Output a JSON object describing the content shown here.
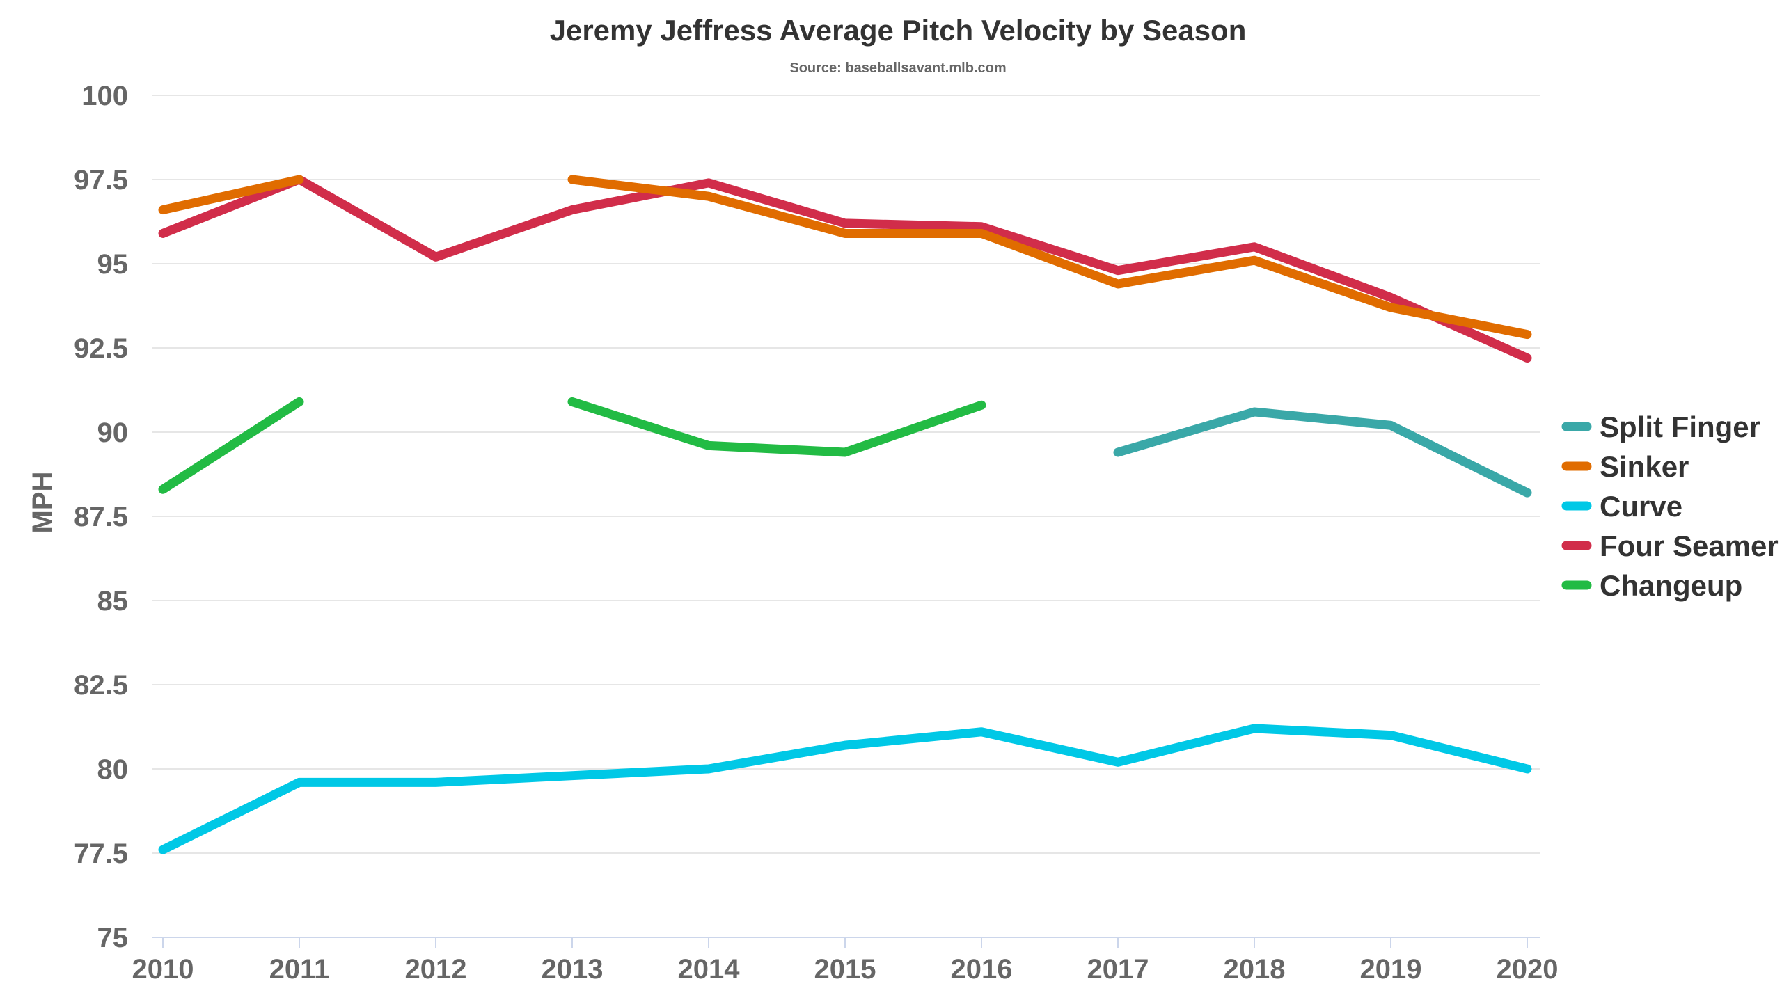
{
  "chart_data": {
    "type": "line",
    "title": "Jeremy Jeffress Average Pitch Velocity by Season",
    "subtitle": "Source: baseballsavant.mlb.com",
    "xlabel": "",
    "ylabel": "MPH",
    "categories": [
      "2010",
      "2011",
      "2012",
      "2013",
      "2014",
      "2015",
      "2016",
      "2017",
      "2018",
      "2019",
      "2020"
    ],
    "y_ticks": [
      "75",
      "77.5",
      "80",
      "82.5",
      "85",
      "87.5",
      "90",
      "92.5",
      "95",
      "97.5",
      "100"
    ],
    "ylim": [
      75,
      100
    ],
    "grid": true,
    "legend_position": "right",
    "series": [
      {
        "name": "Split Finger",
        "color": "#3aa8a8",
        "values": [
          null,
          null,
          null,
          null,
          null,
          null,
          null,
          89.4,
          90.6,
          90.2,
          88.2
        ]
      },
      {
        "name": "Sinker",
        "color": "#e06c00",
        "values": [
          96.6,
          97.5,
          null,
          97.5,
          97.0,
          95.9,
          95.9,
          94.4,
          95.1,
          93.7,
          92.9
        ]
      },
      {
        "name": "Curve",
        "color": "#00c8e6",
        "values": [
          77.6,
          79.6,
          79.6,
          79.8,
          80.0,
          80.7,
          81.1,
          80.2,
          81.2,
          81.0,
          80.0
        ]
      },
      {
        "name": "Four Seamer",
        "color": "#d12d4a",
        "values": [
          95.9,
          97.5,
          95.2,
          96.6,
          97.4,
          96.2,
          96.1,
          94.8,
          95.5,
          94.0,
          92.2
        ]
      },
      {
        "name": "Changeup",
        "color": "#22bb44",
        "values": [
          88.3,
          90.9,
          null,
          90.9,
          89.6,
          89.4,
          90.8,
          null,
          null,
          null,
          null
        ]
      }
    ]
  }
}
